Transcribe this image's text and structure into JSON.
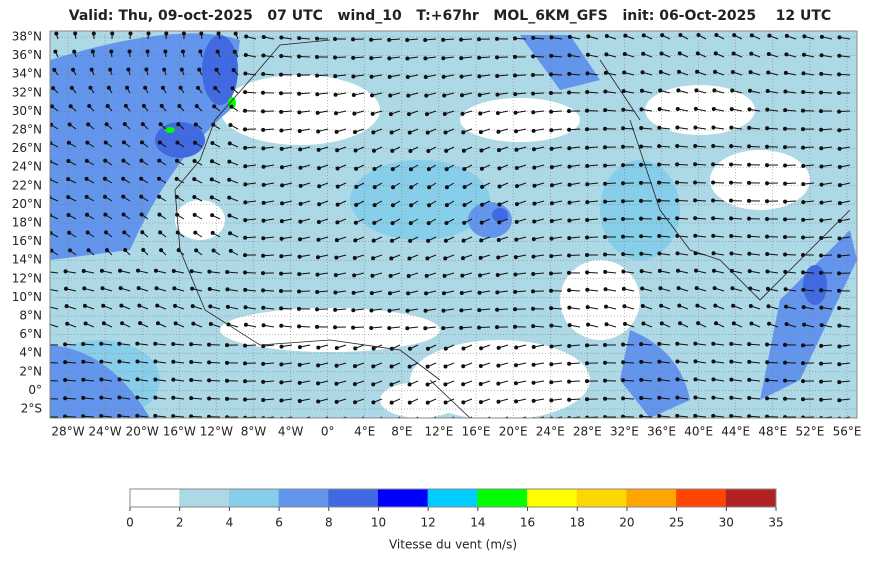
{
  "header": {
    "title": "Valid: Thu, 09-oct-2025   07 UTC   wind_10   T:+67hr   MOL_6KM_GFS   init: 06-Oct-2025    12 UTC"
  },
  "map": {
    "lat_labels": [
      "38°N",
      "36°N",
      "34°N",
      "32°N",
      "30°N",
      "28°N",
      "26°N",
      "24°N",
      "22°N",
      "20°N",
      "18°N",
      "16°N",
      "14°N",
      "12°N",
      "10°N",
      "8°N",
      "6°N",
      "4°N",
      "2°N",
      "0°",
      "2°S"
    ],
    "lon_labels": [
      "28°W",
      "24°W",
      "20°W",
      "16°W",
      "12°W",
      "8°W",
      "4°W",
      "0°",
      "4°E",
      "8°E",
      "12°E",
      "16°E",
      "20°E",
      "24°E",
      "28°E",
      "32°E",
      "36°E",
      "40°E",
      "44°E",
      "48°E",
      "52°E",
      "56°E"
    ]
  },
  "colorbar": {
    "ticks": [
      0,
      2,
      4,
      6,
      8,
      10,
      12,
      14,
      16,
      18,
      20,
      25,
      30,
      35
    ],
    "colors": [
      "#ffffff",
      "#add8e6",
      "#87ceeb",
      "#6495ed",
      "#4169e1",
      "#0000ff",
      "#00ccff",
      "#00ff00",
      "#ffff00",
      "#ffd700",
      "#ffa500",
      "#ff4500",
      "#b22222"
    ],
    "label": "Vitesse du vent (m/s)"
  }
}
